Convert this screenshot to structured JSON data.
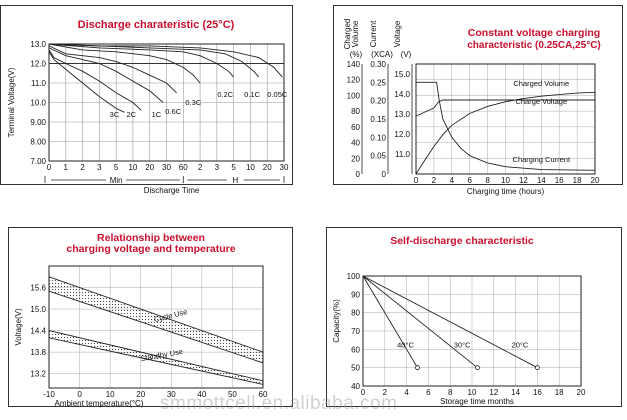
{
  "watermark": "smmottcell.en.alibaba.com",
  "chart_data": [
    {
      "type": "line",
      "title": "Discharge charateristic (25°C)",
      "ylabel": "Terminal Voltage(V)",
      "xlabel": "Discharge Time",
      "ylim": [
        7.0,
        13.0
      ],
      "yticks": [
        "7.00",
        "8.00",
        "9.00",
        "10.0",
        "11.0",
        "12.0",
        "13.0"
      ],
      "x_ticks": [
        "0",
        "1",
        "2",
        "3",
        "5",
        "10",
        "20",
        "30",
        "60",
        "2",
        "3",
        "5",
        "10",
        "20",
        "30"
      ],
      "x_groups": [
        "Min",
        "H"
      ],
      "series": [
        {
          "name": "3C",
          "x": [
            0,
            0.3,
            1,
            2,
            3,
            4,
            4.5
          ],
          "y": [
            12.6,
            12.2,
            11.7,
            11.0,
            10.3,
            9.7,
            9.5
          ]
        },
        {
          "name": "2C",
          "x": [
            0,
            0.3,
            1,
            2,
            3,
            4,
            5,
            5.5
          ],
          "y": [
            12.7,
            12.3,
            12.0,
            11.6,
            11.1,
            10.5,
            10.0,
            9.6
          ]
        },
        {
          "name": "1C",
          "x": [
            0,
            1,
            2,
            3,
            4,
            5,
            6,
            6.8
          ],
          "y": [
            12.8,
            12.4,
            12.2,
            12.0,
            11.6,
            11.1,
            10.6,
            10.0
          ]
        },
        {
          "name": "0.6C",
          "x": [
            0,
            1,
            2,
            3,
            4,
            5,
            6,
            7,
            7.6
          ],
          "y": [
            12.9,
            12.5,
            12.4,
            12.3,
            12.1,
            11.8,
            11.4,
            11.0,
            10.5
          ]
        },
        {
          "name": "0.3C",
          "x": [
            0,
            2,
            4,
            6,
            7,
            8,
            8.6,
            9.0
          ],
          "y": [
            13.0,
            12.7,
            12.6,
            12.4,
            12.2,
            11.8,
            11.4,
            11.0
          ]
        },
        {
          "name": "0.2C",
          "x": [
            0,
            3,
            6,
            8,
            9,
            10,
            10.7,
            11.0
          ],
          "y": [
            13.0,
            12.8,
            12.7,
            12.6,
            12.4,
            12.0,
            11.6,
            11.3
          ]
        },
        {
          "name": "0.1C",
          "x": [
            0,
            3,
            6,
            9,
            10.5,
            11.5,
            12.2,
            12.5
          ],
          "y": [
            13.0,
            12.9,
            12.8,
            12.7,
            12.5,
            12.1,
            11.6,
            11.3
          ]
        },
        {
          "name": "0.05C",
          "x": [
            0,
            3,
            6,
            9,
            11,
            12.5,
            13.4,
            13.9
          ],
          "y": [
            13.0,
            12.9,
            12.9,
            12.8,
            12.6,
            12.3,
            11.8,
            11.3
          ]
        }
      ]
    },
    {
      "type": "line",
      "title": "Constant voltage charging",
      "subtitle": "characteristic (0.25CA,25°C)",
      "xlabel": "Charging time (hours)",
      "xlim": [
        0,
        20
      ],
      "xticks": [
        0,
        2,
        4,
        6,
        8,
        10,
        12,
        14,
        16,
        18,
        20
      ],
      "axes": [
        {
          "title": [
            "Charged",
            "Volume"
          ],
          "unit": "(%)",
          "ticks": [
            "0",
            "20",
            "40",
            "60",
            "80",
            "100",
            "120",
            "140"
          ],
          "range": [
            0,
            140
          ]
        },
        {
          "title": [
            "Current"
          ],
          "unit": "(XCA)",
          "ticks": [
            "0",
            "0.05",
            "0.10",
            "0.15",
            "0.20",
            "0.25",
            "0.30"
          ],
          "range": [
            0,
            0.3
          ]
        },
        {
          "title": [
            "Voltage"
          ],
          "unit": "(V)",
          "ticks": [
            "11.0",
            "12.0",
            "13.0",
            "14.0",
            "15.0"
          ],
          "range": [
            10.0,
            15.5
          ]
        }
      ],
      "series": [
        {
          "name": "Charged Volume",
          "axis": 0,
          "x": [
            0,
            1,
            2,
            3,
            4,
            6,
            8,
            10,
            12,
            14,
            16,
            18,
            20
          ],
          "y": [
            0,
            18,
            35,
            50,
            62,
            77,
            86,
            92,
            96,
            99,
            101,
            103,
            104
          ]
        },
        {
          "name": "Charge Voltage",
          "axis": 2,
          "x": [
            0,
            0.5,
            1,
            2,
            2.5,
            3,
            20
          ],
          "y": [
            12.9,
            13.0,
            13.1,
            13.3,
            13.6,
            13.7,
            13.7
          ]
        },
        {
          "name": "Charging Current",
          "axis": 1,
          "x": [
            0,
            2.3,
            2.6,
            3,
            4,
            5,
            6,
            8,
            10,
            14,
            20
          ],
          "y": [
            0.25,
            0.25,
            0.2,
            0.15,
            0.1,
            0.07,
            0.05,
            0.03,
            0.02,
            0.012,
            0.01
          ]
        }
      ]
    },
    {
      "type": "area",
      "title": "Relationship between",
      "subtitle": "charging voltage and temperature",
      "ylabel": "Voltage(V)",
      "xlabel": "Ambient temperature(°C)",
      "xlim": [
        -10,
        60
      ],
      "ylim": [
        12.8,
        16.2
      ],
      "xticks": [
        -10,
        0,
        10,
        20,
        30,
        40,
        50,
        60
      ],
      "yticks": [
        "13.2",
        "13.8",
        "14.4",
        "15.0",
        "15.6"
      ],
      "bands": [
        {
          "name": "Cycle Use",
          "x": [
            -10,
            60
          ],
          "upper": [
            15.9,
            13.8
          ],
          "lower": [
            15.5,
            13.5
          ]
        },
        {
          "name": "Standby Use",
          "x": [
            -10,
            60
          ],
          "upper": [
            14.4,
            13.0
          ],
          "lower": [
            14.2,
            12.9
          ]
        }
      ]
    },
    {
      "type": "line",
      "title": "Self-discharge characteristic",
      "ylabel": "Capacity(%)",
      "xlabel": "Storage time  months",
      "xlim": [
        0,
        20
      ],
      "ylim": [
        40,
        100
      ],
      "xticks": [
        0,
        2,
        4,
        6,
        8,
        10,
        12,
        14,
        16,
        18,
        20
      ],
      "yticks": [
        40,
        50,
        60,
        70,
        80,
        90,
        100
      ],
      "series": [
        {
          "name": "40°C",
          "x": [
            0,
            5
          ],
          "y": [
            100,
            50
          ]
        },
        {
          "name": "30°C",
          "x": [
            0,
            10.5
          ],
          "y": [
            100,
            50
          ]
        },
        {
          "name": "20°C",
          "x": [
            0,
            16
          ],
          "y": [
            100,
            50
          ]
        }
      ]
    }
  ]
}
